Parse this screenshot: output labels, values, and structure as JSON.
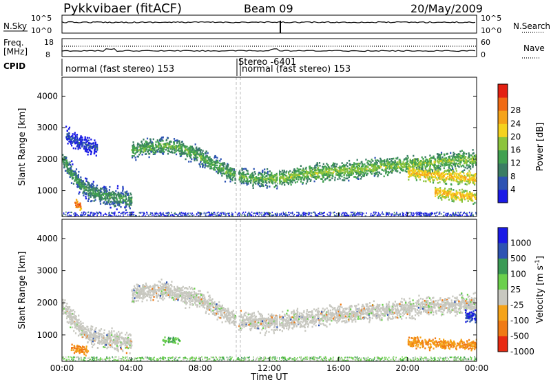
{
  "header": {
    "station": "Pykkvibaer (fitACF)",
    "beam": "Beam 09",
    "date": "20/May/2009"
  },
  "nsky_panel": {
    "left_label": "N.Sky",
    "right_label": "N.Search",
    "left_ticks": [
      "10^5",
      "10^0"
    ],
    "right_ticks": [
      "10^5",
      "10^0"
    ]
  },
  "freq_panel": {
    "left_label_1": "Freq.",
    "left_label_2": "[MHz]",
    "right_label": "Nave",
    "left_ticks": [
      "18",
      "8"
    ],
    "right_ticks": [
      "60",
      "0"
    ]
  },
  "cpid": {
    "label": "CPID",
    "segments": [
      "normal (fast stereo) 153",
      "Stereo -6401",
      "normal (fast stereo) 153"
    ]
  },
  "colors": {
    "scale_power": [
      "#1a1ae6",
      "#2d53b3",
      "#3a7d63",
      "#41a150",
      "#8cc43c",
      "#f5d21e",
      "#f5a319",
      "#f06a14",
      "#e32012"
    ],
    "scale_velocity": [
      "#1a1ae6",
      "#2d53b3",
      "#3a9a55",
      "#6bd04c",
      "#c8c8c0",
      "#f5a319",
      "#f07a14",
      "#e82a12"
    ],
    "gray": "#c8c8c0"
  },
  "chart_data": [
    {
      "type": "heatmap",
      "title": "",
      "xlabel": "",
      "ylabel": "Slant Range [km]",
      "colorbar_label": "Power [dB]",
      "colorbar_ticks": [
        "4",
        "8",
        "12",
        "16",
        "20",
        "24",
        "28"
      ],
      "y_ticks": [
        "1000",
        "2000",
        "3000",
        "4000"
      ],
      "ylim": [
        180,
        4600
      ],
      "xlim_hours": [
        0,
        24
      ],
      "bands": [
        {
          "x": [
            0,
            0.3,
            0.6,
            1.0,
            1.5,
            2.0,
            2.5,
            3.0,
            3.5,
            4.0
          ],
          "y": [
            1950,
            1800,
            1500,
            1250,
            1050,
            950,
            850,
            800,
            780,
            760
          ],
          "width_km": 420,
          "value": 12
        },
        {
          "x": [
            0.2,
            0.6,
            1.0,
            1.5,
            2.0
          ],
          "y": [
            2800,
            2650,
            2550,
            2450,
            2400
          ],
          "width_km": 350,
          "value": 6
        },
        {
          "x": [
            4.0,
            5.0,
            6.0,
            7.0,
            8.0,
            9.0,
            10.0,
            11.0,
            12.0
          ],
          "y": [
            2300,
            2400,
            2450,
            2350,
            2100,
            1800,
            1500,
            1400,
            1400
          ],
          "width_km": 380,
          "value": 14
        },
        {
          "x": [
            12.0,
            13.0,
            14.0,
            15.0,
            16.0,
            17.0,
            18.0,
            19.0,
            20.0,
            21.0,
            22.0,
            23.0,
            24.0
          ],
          "y": [
            1400,
            1450,
            1550,
            1600,
            1650,
            1700,
            1750,
            1800,
            1850,
            1900,
            1950,
            2000,
            2000
          ],
          "width_km": 380,
          "value": 16
        },
        {
          "x": [
            20.0,
            21.0,
            22.0,
            23.0,
            24.0
          ],
          "y": [
            1600,
            1550,
            1500,
            1450,
            1400
          ],
          "width_km": 300,
          "value": 22
        },
        {
          "x": [
            21.5,
            22.5,
            23.5,
            24.0
          ],
          "y": [
            1000,
            900,
            850,
            800
          ],
          "width_km": 260,
          "value": 22
        },
        {
          "x": [
            0.7,
            0.9,
            1.1
          ],
          "y": [
            600,
            580,
            560
          ],
          "width_km": 200,
          "value": 28
        }
      ]
    },
    {
      "type": "heatmap",
      "title": "",
      "xlabel": "Time UT",
      "ylabel": "Slant Range [km]",
      "colorbar_label": "Velocity [m s^-1]",
      "colorbar_ticks": [
        "1000",
        "500",
        "100",
        "25",
        "-25",
        "-100",
        "-500",
        "-1000"
      ],
      "y_ticks": [
        "1000",
        "2000",
        "3000",
        "4000"
      ],
      "x_ticks": [
        "00:00",
        "04:00",
        "08:00",
        "12:00",
        "16:00",
        "20:00",
        "00:00"
      ],
      "ylim": [
        180,
        4600
      ],
      "xlim_hours": [
        0,
        24
      ],
      "bands": [
        {
          "x": [
            0,
            0.5,
            1.0,
            1.5,
            2.0,
            3.0,
            4.0
          ],
          "y": [
            1900,
            1600,
            1250,
            1050,
            950,
            850,
            800
          ],
          "width_km": 420,
          "value": 0
        },
        {
          "x": [
            4.0,
            6.0,
            8.0,
            10.0,
            12.0,
            16.0,
            20.0,
            24.0
          ],
          "y": [
            2300,
            2450,
            2100,
            1500,
            1400,
            1650,
            1850,
            2000
          ],
          "width_km": 400,
          "value": 0
        },
        {
          "x": [
            0.5,
            1.0,
            1.5
          ],
          "y": [
            600,
            570,
            550
          ],
          "width_km": 200,
          "value": -500
        },
        {
          "x": [
            5.8,
            6.3,
            6.8
          ],
          "y": [
            850,
            870,
            860
          ],
          "width_km": 140,
          "value": 100
        },
        {
          "x": [
            20.0,
            21.5,
            23.0,
            24.0
          ],
          "y": [
            800,
            750,
            720,
            700
          ],
          "width_km": 220,
          "value": -100
        },
        {
          "x": [
            23.3,
            23.7,
            24.0
          ],
          "y": [
            1600,
            1600,
            1550
          ],
          "width_km": 300,
          "value": 500
        }
      ]
    }
  ]
}
